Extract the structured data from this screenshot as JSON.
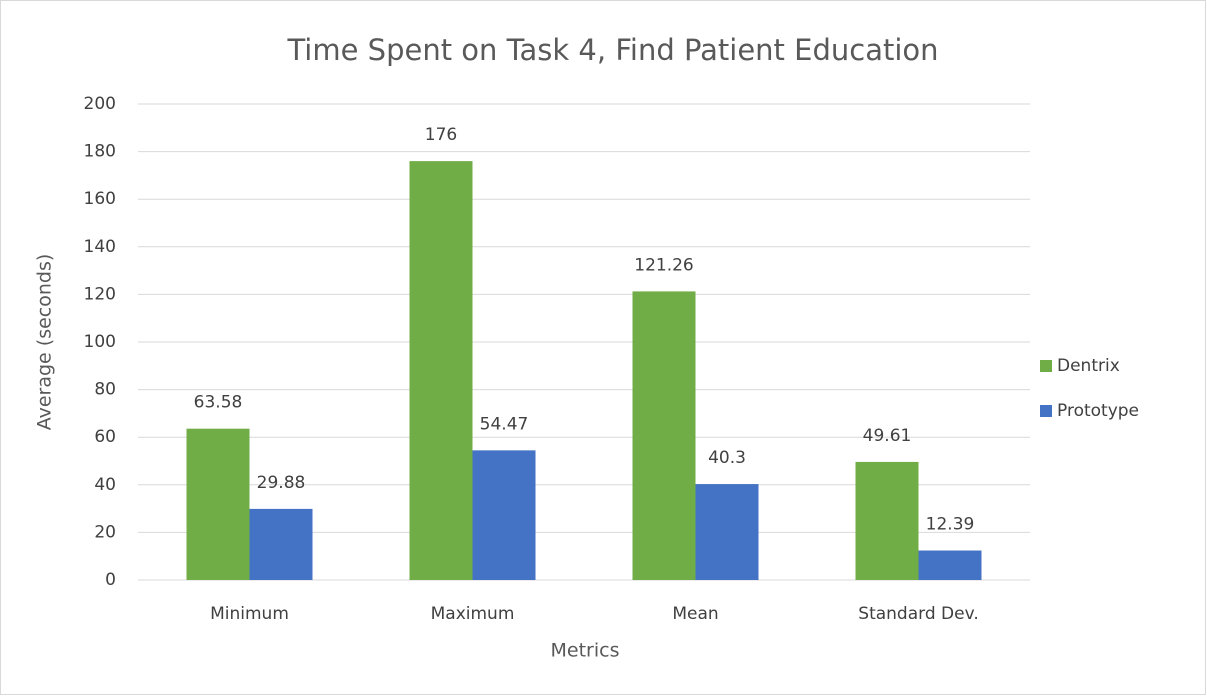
{
  "chart_data": {
    "type": "bar",
    "title": "Time Spent on Task 4, Find Patient Education",
    "x_label": "Metrics",
    "y_label": "Average (seconds)",
    "categories": [
      "Minimum",
      "Maximum",
      "Mean",
      "Standard Dev."
    ],
    "series": [
      {
        "name": "Dentrix",
        "color": "#70ad47",
        "values": [
          63.58,
          176,
          121.26,
          49.61
        ]
      },
      {
        "name": "Prototype",
        "color": "#4472c4",
        "values": [
          29.88,
          54.47,
          40.3,
          12.39
        ]
      }
    ],
    "ylim": [
      0,
      200
    ],
    "yticks": [
      0,
      20,
      40,
      60,
      80,
      100,
      120,
      140,
      160,
      180,
      200
    ],
    "grid": true,
    "legend": "right"
  }
}
